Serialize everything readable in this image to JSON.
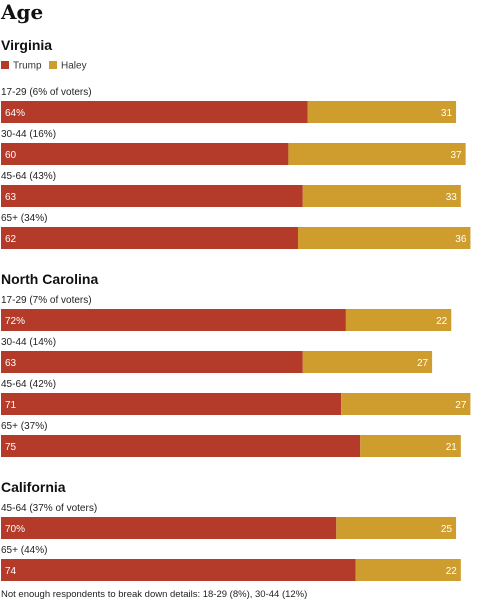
{
  "title": "Age",
  "legend": [
    {
      "name": "Trump",
      "color": "#b43a2a"
    },
    {
      "name": "Haley",
      "color": "#cf9c2e"
    }
  ],
  "chart_data": [
    {
      "type": "bar",
      "stacked": true,
      "orientation": "horizontal",
      "title": "Virginia",
      "categories": [
        "17-29 (6% of voters)",
        "30-44 (16%)",
        "45-64 (43%)",
        "65+ (34%)"
      ],
      "series": [
        {
          "name": "Trump",
          "values": [
            64,
            60,
            63,
            62
          ],
          "labels": [
            "64%",
            "60",
            "63",
            "62"
          ]
        },
        {
          "name": "Haley",
          "values": [
            31,
            37,
            33,
            36
          ],
          "labels": [
            "31",
            "37",
            "33",
            "36"
          ]
        }
      ],
      "xlim": [
        0,
        100
      ]
    },
    {
      "type": "bar",
      "stacked": true,
      "orientation": "horizontal",
      "title": "North Carolina",
      "categories": [
        "17-29 (7% of voters)",
        "30-44 (14%)",
        "45-64 (42%)",
        "65+ (37%)"
      ],
      "series": [
        {
          "name": "Trump",
          "values": [
            72,
            63,
            71,
            75
          ],
          "labels": [
            "72%",
            "63",
            "71",
            "75"
          ]
        },
        {
          "name": "Haley",
          "values": [
            22,
            27,
            27,
            21
          ],
          "labels": [
            "22",
            "27",
            "27",
            "21"
          ]
        }
      ],
      "xlim": [
        0,
        100
      ]
    },
    {
      "type": "bar",
      "stacked": true,
      "orientation": "horizontal",
      "title": "California",
      "categories": [
        "45-64 (37% of voters)",
        "65+ (44%)"
      ],
      "series": [
        {
          "name": "Trump",
          "values": [
            70,
            74
          ],
          "labels": [
            "70%",
            "74"
          ]
        },
        {
          "name": "Haley",
          "values": [
            25,
            22
          ],
          "labels": [
            "25",
            "22"
          ]
        }
      ],
      "xlim": [
        0,
        100
      ]
    }
  ],
  "note": "Not enough respondents to break down details: 18-29 (8%), 30-44 (12%)"
}
